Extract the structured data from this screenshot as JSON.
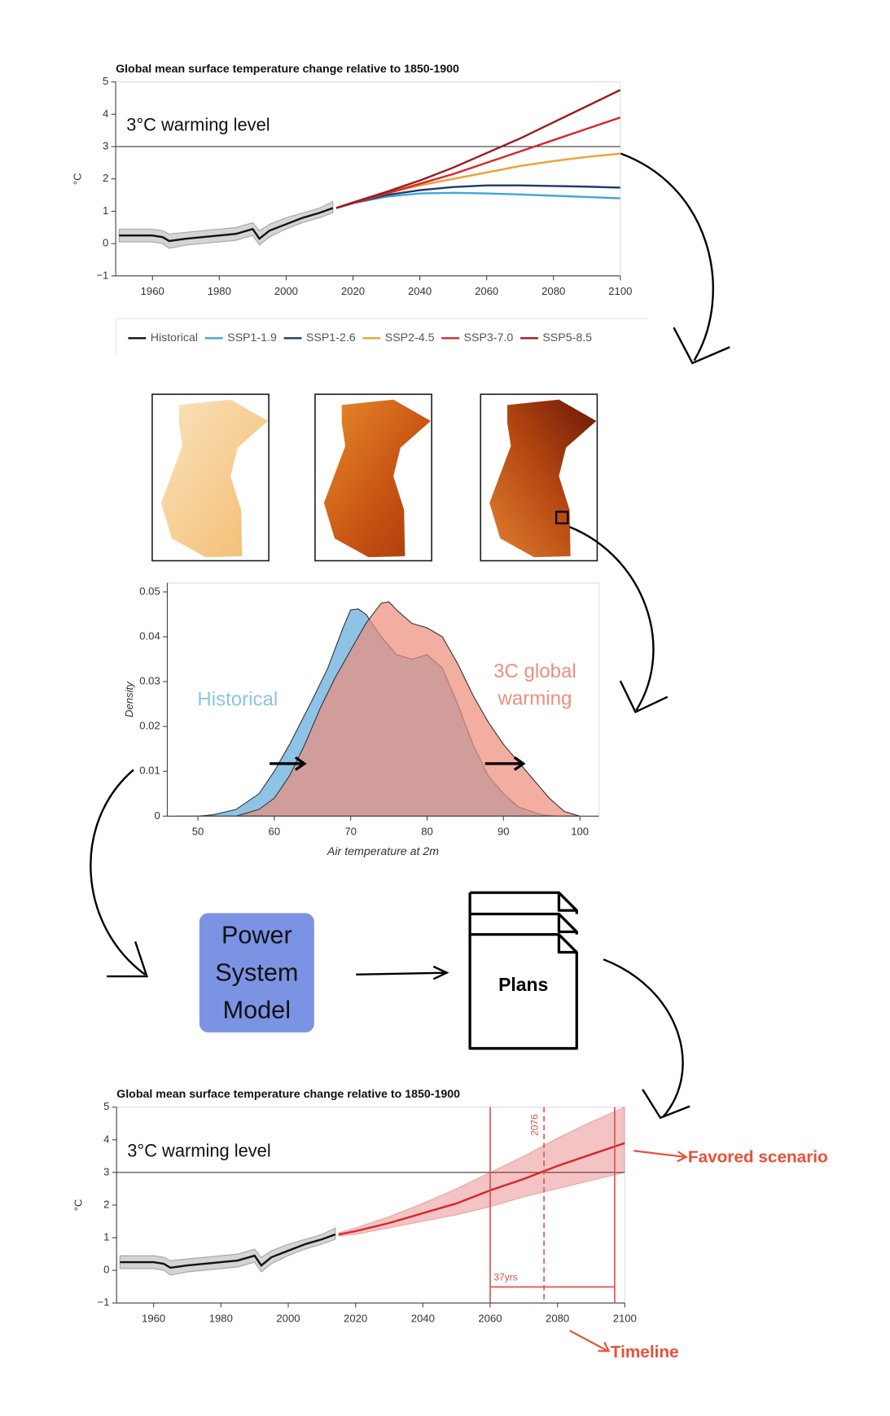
{
  "chart_data": [
    {
      "type": "line",
      "title": "Global mean surface temperature change relative to 1850-1900",
      "ylabel": "°C",
      "xlim": [
        1949,
        2100
      ],
      "ylim": [
        -1,
        5
      ],
      "xticks": [
        1960,
        1980,
        2000,
        2020,
        2040,
        2060,
        2080,
        2100
      ],
      "yticks": [
        {
          "value": -1,
          "label": "−1"
        },
        0,
        1,
        2,
        3,
        4,
        5
      ],
      "hline": {
        "value": 3,
        "label": "3°C warming level"
      },
      "legend": "bottom",
      "series": [
        {
          "name": "Historical",
          "color": "#111111",
          "x": [
            1950,
            1955,
            1960,
            1963,
            1965,
            1970,
            1975,
            1980,
            1985,
            1990,
            1992,
            1995,
            2000,
            2005,
            2010,
            2014
          ],
          "values": [
            0.25,
            0.25,
            0.25,
            0.2,
            0.08,
            0.15,
            0.2,
            0.25,
            0.3,
            0.45,
            0.15,
            0.4,
            0.6,
            0.8,
            0.95,
            1.1
          ],
          "lower": [
            0.05,
            0.05,
            0.05,
            0.0,
            -0.15,
            -0.05,
            0.0,
            0.05,
            0.1,
            0.25,
            -0.05,
            0.2,
            0.45,
            0.65,
            0.8,
            0.95
          ],
          "upper": [
            0.45,
            0.45,
            0.45,
            0.4,
            0.3,
            0.35,
            0.4,
            0.45,
            0.5,
            0.65,
            0.4,
            0.6,
            0.8,
            0.95,
            1.1,
            1.3
          ]
        },
        {
          "name": "SSP1-1.9",
          "color": "#3ea6d8",
          "x": [
            2015,
            2020,
            2030,
            2040,
            2050,
            2060,
            2070,
            2080,
            2090,
            2100
          ],
          "values": [
            1.1,
            1.25,
            1.45,
            1.55,
            1.57,
            1.55,
            1.52,
            1.48,
            1.44,
            1.4
          ]
        },
        {
          "name": "SSP1-2.6",
          "color": "#1d3a6e",
          "x": [
            2015,
            2020,
            2030,
            2040,
            2050,
            2060,
            2070,
            2080,
            2090,
            2100
          ],
          "values": [
            1.1,
            1.25,
            1.5,
            1.65,
            1.75,
            1.8,
            1.8,
            1.78,
            1.76,
            1.73
          ]
        },
        {
          "name": "SSP2-4.5",
          "color": "#efa031",
          "x": [
            2015,
            2020,
            2030,
            2040,
            2050,
            2060,
            2070,
            2080,
            2090,
            2100
          ],
          "values": [
            1.1,
            1.25,
            1.55,
            1.8,
            2.0,
            2.2,
            2.4,
            2.55,
            2.68,
            2.78
          ]
        },
        {
          "name": "SSP3-7.0",
          "color": "#d62728",
          "x": [
            2015,
            2020,
            2030,
            2040,
            2050,
            2060,
            2070,
            2080,
            2090,
            2100
          ],
          "values": [
            1.1,
            1.25,
            1.55,
            1.85,
            2.15,
            2.5,
            2.85,
            3.2,
            3.55,
            3.9
          ]
        },
        {
          "name": "SSP5-8.5",
          "color": "#981b1e",
          "x": [
            2015,
            2020,
            2030,
            2040,
            2050,
            2060,
            2070,
            2080,
            2090,
            2100
          ],
          "values": [
            1.1,
            1.27,
            1.6,
            1.95,
            2.35,
            2.8,
            3.25,
            3.75,
            4.25,
            4.75
          ]
        }
      ]
    },
    {
      "type": "area",
      "xlabel": "Air temperature at 2m",
      "ylabel": "Density",
      "xlim": [
        46,
        102.5
      ],
      "ylim": [
        0,
        0.052
      ],
      "xticks": [
        50,
        60,
        70,
        80,
        90,
        100
      ],
      "yticks": [
        0,
        0.01,
        0.02,
        0.03,
        0.04,
        0.05
      ],
      "series": [
        {
          "name": "Historical",
          "color": "#8ec3e6",
          "x": [
            47,
            50,
            52,
            55,
            58,
            60,
            62,
            65,
            67,
            69,
            70,
            71,
            72,
            74,
            76,
            78,
            80,
            82,
            84,
            86,
            88,
            90,
            92,
            95,
            97
          ],
          "values": [
            0,
            0,
            0.0003,
            0.0015,
            0.005,
            0.01,
            0.016,
            0.026,
            0.033,
            0.042,
            0.046,
            0.0462,
            0.045,
            0.04,
            0.036,
            0.035,
            0.036,
            0.033,
            0.025,
            0.016,
            0.009,
            0.005,
            0.002,
            0.0003,
            0
          ]
        },
        {
          "name": "3C global warming",
          "color": "#ec8f7d",
          "x": [
            55,
            58,
            60,
            62,
            64,
            66,
            68,
            70,
            72,
            74,
            75,
            76,
            78,
            80,
            82,
            84,
            86,
            88,
            90,
            92,
            94,
            96,
            98,
            100
          ],
          "values": [
            0,
            0.0015,
            0.004,
            0.009,
            0.016,
            0.024,
            0.031,
            0.037,
            0.043,
            0.0475,
            0.0478,
            0.046,
            0.043,
            0.042,
            0.04,
            0.034,
            0.027,
            0.021,
            0.016,
            0.012,
            0.008,
            0.004,
            0.001,
            0
          ]
        }
      ]
    },
    {
      "type": "line",
      "title": "Global mean surface temperature change relative to 1850-1900",
      "ylabel": "°C",
      "xlim": [
        1949,
        2100
      ],
      "ylim": [
        -1,
        5
      ],
      "xticks": [
        1960,
        1980,
        2000,
        2020,
        2040,
        2060,
        2080,
        2100
      ],
      "yticks": [
        {
          "value": -1,
          "label": "−1"
        },
        0,
        1,
        2,
        3,
        4,
        5
      ],
      "hline": {
        "value": 3,
        "label": "3°C warming level"
      },
      "vlines": [
        2060,
        2097
      ],
      "dashed_vline": 2076,
      "span_label": "37yrs",
      "marker_color": "#e05050",
      "series": [
        {
          "name": "Historical",
          "color": "#111111",
          "x": [
            1950,
            1955,
            1960,
            1963,
            1965,
            1970,
            1975,
            1980,
            1985,
            1990,
            1992,
            1995,
            2000,
            2005,
            2010,
            2014
          ],
          "values": [
            0.25,
            0.25,
            0.25,
            0.2,
            0.08,
            0.15,
            0.2,
            0.25,
            0.3,
            0.45,
            0.15,
            0.4,
            0.6,
            0.8,
            0.95,
            1.1
          ],
          "lower": [
            0.05,
            0.05,
            0.05,
            0.0,
            -0.15,
            -0.05,
            0.0,
            0.05,
            0.1,
            0.25,
            -0.05,
            0.2,
            0.45,
            0.65,
            0.8,
            0.95
          ],
          "upper": [
            0.45,
            0.45,
            0.45,
            0.4,
            0.3,
            0.35,
            0.4,
            0.45,
            0.5,
            0.65,
            0.4,
            0.6,
            0.8,
            0.95,
            1.1,
            1.3
          ]
        },
        {
          "name": "SSP3-7.0",
          "color": "#d62728",
          "x": [
            2015,
            2020,
            2030,
            2040,
            2050,
            2060,
            2070,
            2080,
            2090,
            2100
          ],
          "values": [
            1.1,
            1.2,
            1.45,
            1.75,
            2.05,
            2.45,
            2.8,
            3.2,
            3.55,
            3.9
          ],
          "lower": [
            1.05,
            1.1,
            1.3,
            1.5,
            1.7,
            1.95,
            2.25,
            2.5,
            2.75,
            3.0
          ],
          "upper": [
            1.15,
            1.3,
            1.65,
            2.05,
            2.5,
            3.0,
            3.5,
            4.05,
            4.55,
            5.0
          ]
        }
      ]
    }
  ],
  "nodes": {
    "model": "Power System Model",
    "plans": "Plans"
  },
  "annotations": {
    "favored": "Favored scenario",
    "timeline": "Timeline"
  }
}
